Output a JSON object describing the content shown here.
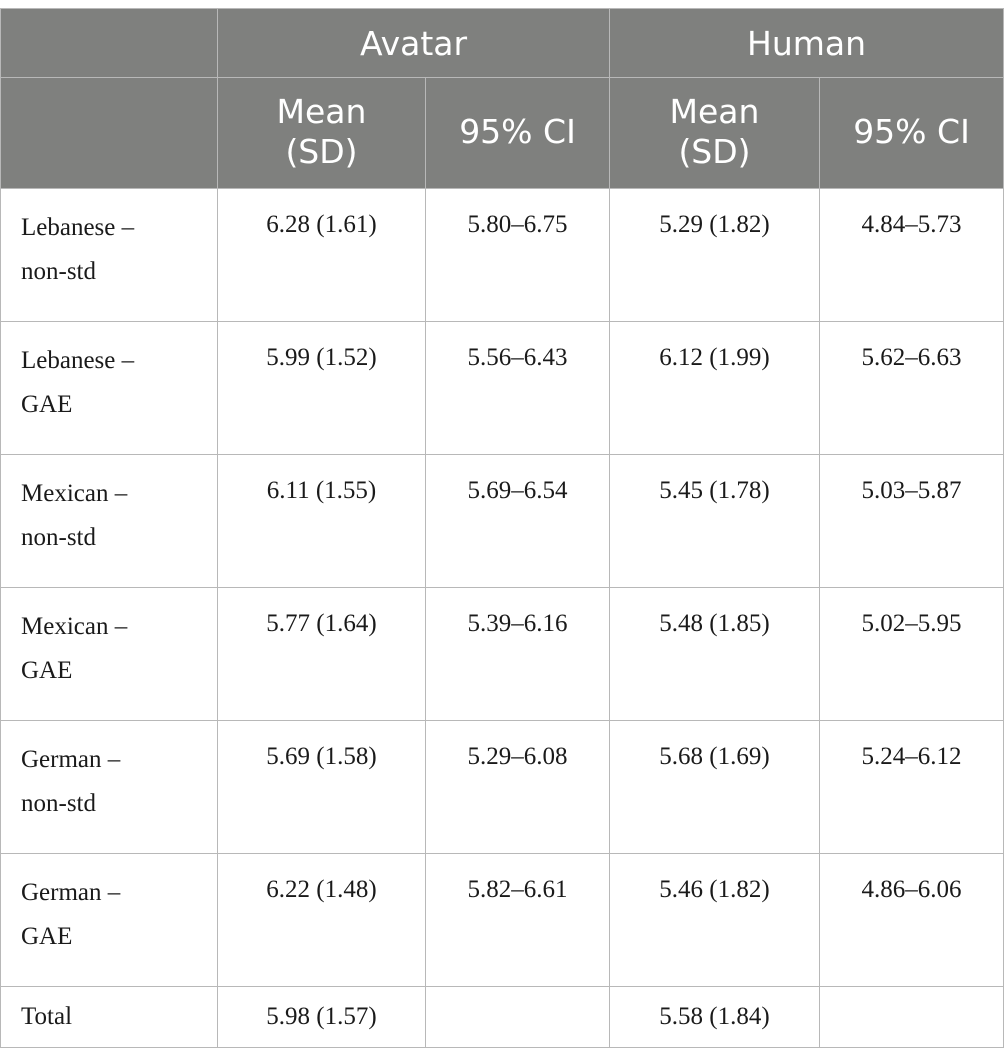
{
  "header": {
    "groups": [
      "Avatar",
      "Human"
    ],
    "subheaders": [
      {
        "line1": "Mean",
        "line2": "(SD)"
      },
      {
        "line1": "95% CI",
        "line2": ""
      },
      {
        "line1": "Mean",
        "line2": "(SD)"
      },
      {
        "line1": "95% CI",
        "line2": ""
      }
    ]
  },
  "rows": [
    {
      "line1": "Lebanese –",
      "line2": "non-std",
      "avatar_mean": "6.28 (1.61)",
      "avatar_ci": "5.80–6.75",
      "human_mean": "5.29 (1.82)",
      "human_ci": "4.84–5.73"
    },
    {
      "line1": "Lebanese –",
      "line2": "GAE",
      "avatar_mean": "5.99 (1.52)",
      "avatar_ci": "5.56–6.43",
      "human_mean": "6.12 (1.99)",
      "human_ci": "5.62–6.63"
    },
    {
      "line1": "Mexican –",
      "line2": "non-std",
      "avatar_mean": "6.11 (1.55)",
      "avatar_ci": "5.69–6.54",
      "human_mean": "5.45 (1.78)",
      "human_ci": "5.03–5.87"
    },
    {
      "line1": "Mexican –",
      "line2": "GAE",
      "avatar_mean": "5.77 (1.64)",
      "avatar_ci": "5.39–6.16",
      "human_mean": "5.48 (1.85)",
      "human_ci": "5.02–5.95"
    },
    {
      "line1": "German –",
      "line2": "non-std",
      "avatar_mean": "5.69 (1.58)",
      "avatar_ci": "5.29–6.08",
      "human_mean": "5.68 (1.69)",
      "human_ci": "5.24–6.12"
    },
    {
      "line1": "German –",
      "line2": "GAE",
      "avatar_mean": "6.22 (1.48)",
      "avatar_ci": "5.82–6.61",
      "human_mean": "5.46 (1.82)",
      "human_ci": "4.86–6.06"
    }
  ],
  "total": {
    "label": "Total",
    "avatar_mean": "5.98 (1.57)",
    "avatar_ci": "",
    "human_mean": "5.58 (1.84)",
    "human_ci": ""
  }
}
